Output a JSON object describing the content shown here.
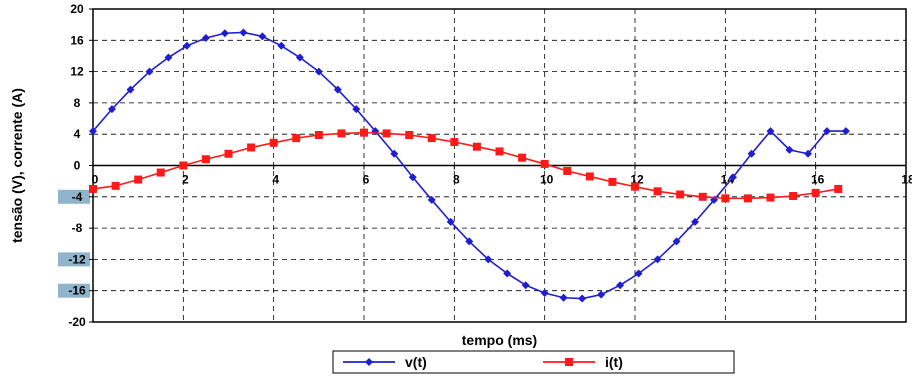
{
  "chart_data": {
    "type": "line",
    "xlabel": "tempo (ms)",
    "ylabel": "tensão (V), corrente (A)",
    "xlim": [
      0,
      18
    ],
    "ylim": [
      -20,
      20
    ],
    "x_ticks": [
      0,
      2,
      4,
      6,
      8,
      10,
      12,
      14,
      16,
      18
    ],
    "y_ticks": [
      20,
      16,
      12,
      8,
      4,
      0,
      -4,
      -8,
      -12,
      -16,
      -20
    ],
    "highlighted_y_ticks": [
      -4,
      -12,
      -16
    ],
    "grid": true,
    "legend_position": "bottom",
    "series": [
      {
        "name": "v(t)",
        "color": "#1f1fd0",
        "marker": "diamond",
        "x": [
          0,
          0.42,
          0.83,
          1.25,
          1.67,
          2.08,
          2.5,
          2.92,
          3.33,
          3.75,
          4.17,
          4.58,
          5.0,
          5.42,
          5.83,
          6.25,
          6.67,
          7.08,
          7.5,
          7.92,
          8.33,
          8.75,
          9.17,
          9.58,
          10.0,
          10.42,
          10.83,
          11.25,
          11.67,
          12.08,
          12.5,
          12.92,
          13.33,
          13.75,
          14.17,
          14.58,
          15.0,
          15.42,
          15.83,
          16.25,
          16.67
        ],
        "y": [
          4.4,
          7.2,
          9.7,
          12.0,
          13.8,
          15.3,
          16.3,
          16.9,
          17.0,
          16.5,
          15.3,
          13.8,
          12.0,
          9.7,
          7.2,
          4.4,
          1.5,
          -1.5,
          -4.4,
          -7.2,
          -9.7,
          -12.0,
          -13.8,
          -15.3,
          -16.3,
          -16.9,
          -17.0,
          -16.5,
          -15.3,
          -13.8,
          -12.0,
          -9.7,
          -7.2,
          -4.4,
          -1.5,
          1.5,
          4.4,
          2.0,
          1.5,
          4.4,
          4.4
        ]
      },
      {
        "name": "i(t)",
        "color": "#ff1a1a",
        "marker": "square",
        "x": [
          0,
          0.5,
          1.0,
          1.5,
          2.0,
          2.5,
          3.0,
          3.5,
          4.0,
          4.5,
          5.0,
          5.5,
          6.0,
          6.5,
          7.0,
          7.5,
          8.0,
          8.5,
          9.0,
          9.5,
          10.0,
          10.5,
          11.0,
          11.5,
          12.0,
          12.5,
          13.0,
          13.5,
          14.0,
          14.5,
          15.0,
          15.5,
          16.0,
          16.5
        ],
        "y": [
          -3.0,
          -2.6,
          -1.8,
          -0.9,
          0.0,
          0.8,
          1.5,
          2.3,
          2.9,
          3.5,
          3.9,
          4.1,
          4.2,
          4.1,
          3.9,
          3.5,
          3.0,
          2.4,
          1.8,
          1.0,
          0.2,
          -0.7,
          -1.4,
          -2.1,
          -2.7,
          -3.3,
          -3.7,
          -4.0,
          -4.2,
          -4.2,
          -4.1,
          -3.9,
          -3.5,
          -3.0
        ]
      }
    ]
  }
}
